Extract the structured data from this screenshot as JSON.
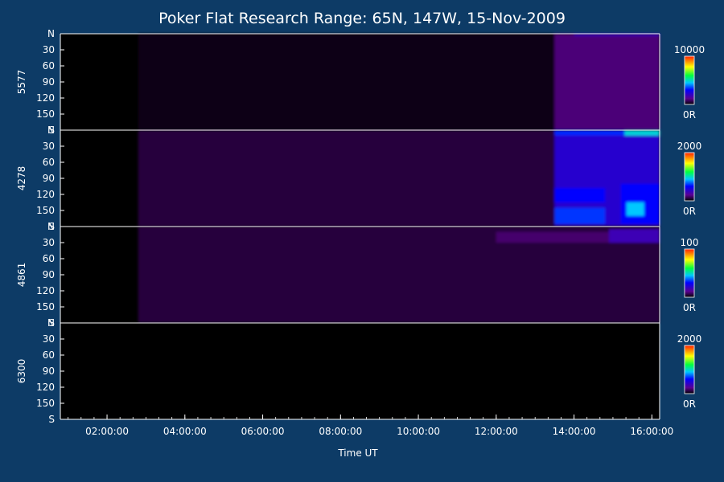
{
  "chart_data": {
    "type": "heatmap",
    "title": "Poker Flat Research Range: 65N, 147W, 15-Nov-2009",
    "xlabel": "Time UT",
    "x_ticks": [
      "02:00:00",
      "04:00:00",
      "06:00:00",
      "08:00:00",
      "10:00:00",
      "12:00:00",
      "14:00:00",
      "16:00:00"
    ],
    "xlim_hours": [
      0.8,
      16.2
    ],
    "x_tick_hours": [
      2,
      4,
      6,
      8,
      10,
      12,
      14,
      16
    ],
    "y_ticks": [
      "N",
      "30",
      "60",
      "90",
      "120",
      "150",
      "S"
    ],
    "y_tick_values": [
      0,
      30,
      60,
      90,
      120,
      150,
      180
    ],
    "ylim": [
      0,
      180
    ],
    "panels": [
      {
        "label": "5577",
        "cmax": "10000",
        "cmin": "0R",
        "data_start_hour": 2.8,
        "regions": [
          {
            "t0": 2.8,
            "t1": 13.5,
            "y0": 0,
            "y1": 180,
            "intensity": 0.02
          },
          {
            "t0": 13.5,
            "t1": 16.2,
            "y0": 0,
            "y1": 180,
            "intensity": 0.1
          },
          {
            "t0": 14.0,
            "t1": 16.2,
            "y0": 0,
            "y1": 4,
            "intensity": 0.2
          }
        ]
      },
      {
        "label": "4278",
        "cmax": "2000",
        "cmin": "0R",
        "data_start_hour": 2.8,
        "regions": [
          {
            "t0": 2.8,
            "t1": 13.5,
            "y0": 0,
            "y1": 180,
            "intensity": 0.05
          },
          {
            "t0": 13.5,
            "t1": 16.2,
            "y0": 0,
            "y1": 180,
            "intensity": 0.22
          },
          {
            "t0": 13.5,
            "t1": 15.3,
            "y0": 0,
            "y1": 10,
            "intensity": 0.33
          },
          {
            "t0": 15.3,
            "t1": 16.2,
            "y0": 0,
            "y1": 10,
            "intensity": 0.48
          },
          {
            "t0": 13.5,
            "t1": 14.8,
            "y0": 108,
            "y1": 135,
            "intensity": 0.3
          },
          {
            "t0": 13.5,
            "t1": 14.8,
            "y0": 145,
            "y1": 175,
            "intensity": 0.34
          },
          {
            "t0": 15.2,
            "t1": 16.2,
            "y0": 100,
            "y1": 175,
            "intensity": 0.3
          },
          {
            "t0": 15.35,
            "t1": 15.8,
            "y0": 135,
            "y1": 160,
            "intensity": 0.45
          }
        ]
      },
      {
        "label": "4861",
        "cmax": "100",
        "cmin": "0R",
        "data_start_hour": 2.8,
        "regions": [
          {
            "t0": 2.8,
            "t1": 16.2,
            "y0": 0,
            "y1": 180,
            "intensity": 0.05
          },
          {
            "t0": 12.0,
            "t1": 16.2,
            "y0": 10,
            "y1": 30,
            "intensity": 0.09
          },
          {
            "t0": 14.9,
            "t1": 16.2,
            "y0": 5,
            "y1": 30,
            "intensity": 0.18
          }
        ]
      },
      {
        "label": "6300",
        "cmax": "2000",
        "cmin": "0R",
        "data_start_hour": 2.8,
        "regions": []
      }
    ]
  }
}
